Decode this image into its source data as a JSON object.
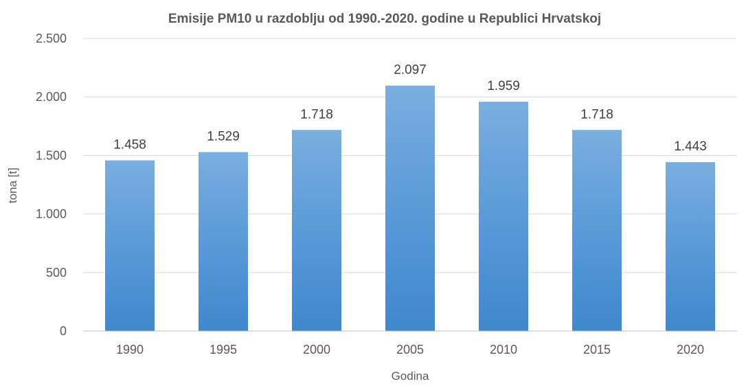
{
  "chart_data": {
    "type": "bar",
    "title": "Emisije PM10 u razdoblju od 1990.-2020. godine  u Republici Hrvatskoj",
    "xlabel": "Godina",
    "ylabel": "tona [t]",
    "categories": [
      "1990",
      "1995",
      "2000",
      "2005",
      "2010",
      "2015",
      "2020"
    ],
    "values": [
      1458,
      1529,
      1718,
      2097,
      1959,
      1718,
      1443
    ],
    "value_labels": [
      "1.458",
      "1.529",
      "1.718",
      "2.097",
      "1.959",
      "1.718",
      "1.443"
    ],
    "ylim": [
      0,
      2500
    ],
    "yticks": [
      0,
      500,
      1000,
      1500,
      2000,
      2500
    ],
    "ytick_labels": [
      "0",
      "500",
      "1.000",
      "1.500",
      "2.000",
      "2.500"
    ],
    "grid": true,
    "legend": "none",
    "colors": {
      "bar_light": "#7aaee0",
      "bar_dark": "#3f88cc"
    }
  }
}
